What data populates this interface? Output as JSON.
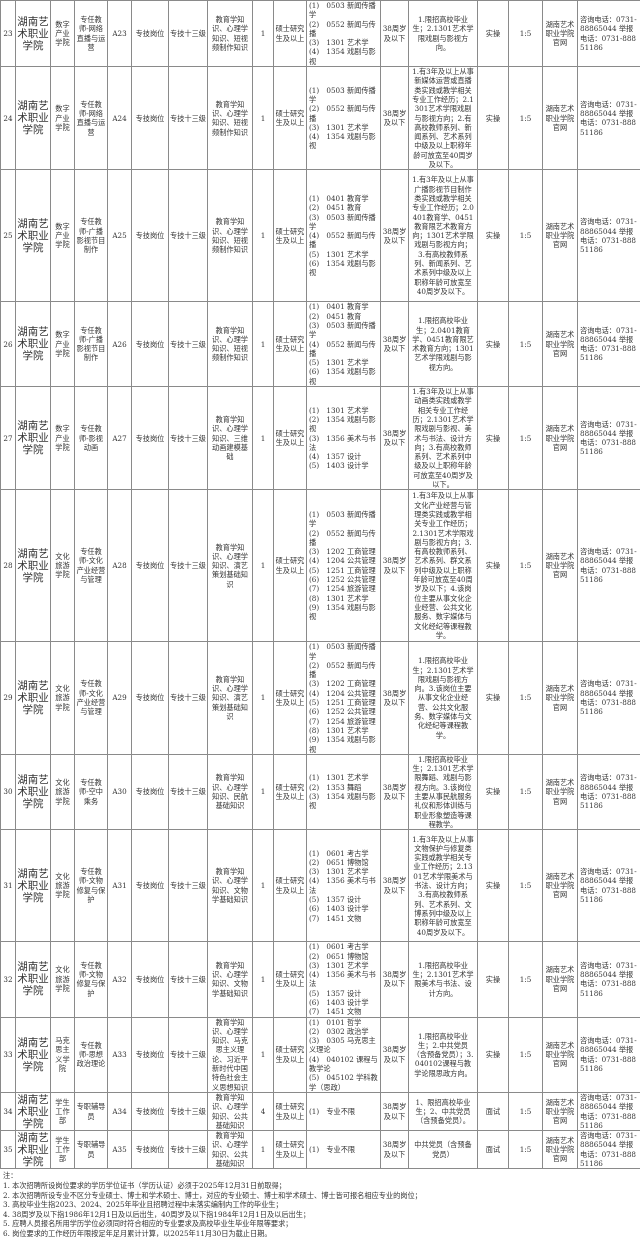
{
  "rows": [
    {
      "no": "23",
      "unit": "湖南艺术职业学院",
      "dept": "数字产业学院",
      "position": "专任教师-网络直播与运营",
      "code": "A23",
      "type": "专技岗位",
      "level": "专技十三级",
      "exam": "教育学知识、心理学知识、短视频制作知识",
      "count": "1",
      "edu": "硕士研究生及以上",
      "majors": [
        "(1)　0503 新闻传播学",
        "(2)　0552 新闻与传播",
        "(3)　1301 艺术学",
        "(4)　1354 戏剧与影视"
      ],
      "age": "38周岁及以下",
      "other": "1.限招高校毕业生；2.1301艺术学限戏剧与影视方向。",
      "method": "实操",
      "ratio": "1:5",
      "site": "湖南艺术职业学院官网",
      "contact": "咨询电话：0731-88865044 举报电话：0731-88851186"
    },
    {
      "no": "24",
      "unit": "湖南艺术职业学院",
      "dept": "数字产业学院",
      "position": "专任教师-网络直播与运营",
      "code": "A24",
      "type": "专技岗位",
      "level": "专技十三级",
      "exam": "教育学知识、心理学知识、短视频制作知识",
      "count": "1",
      "edu": "硕士研究生及以上",
      "majors": [
        "(1)　0503 新闻传播学",
        "(2)　0552 新闻与传播",
        "(3)　1301 艺术学",
        "(4)　1354 戏剧与影视"
      ],
      "age": "38周岁及以下",
      "other": "1.有3年及以上从事新媒体运营或直播类实践或教学相关专业工作经历；2.1301艺术学限戏剧与影视方向；2.有高校教师系列、新闻系列、艺术系列中级及以上职称年龄可放宽至40周岁及以下。",
      "method": "实操",
      "ratio": "1:5",
      "site": "湖南艺术职业学院官网",
      "contact": "咨询电话：0731-88865044 举报电话：0731-88851186"
    },
    {
      "no": "25",
      "unit": "湖南艺术职业学院",
      "dept": "数字产业学院",
      "position": "专任教师-广播影视节目制作",
      "code": "A25",
      "type": "专技岗位",
      "level": "专技十三级",
      "exam": "教育学知识、心理学知识、短视频制作知识",
      "count": "1",
      "edu": "硕士研究生及以上",
      "majors": [
        "(1)　0401 教育学",
        "(2)　0451 教育",
        "(3)　0503 新闻传播学",
        "(4)　0552 新闻与传播",
        "(5)　1301 艺术学",
        "(6)　1354 戏剧与影视"
      ],
      "age": "38周岁及以下",
      "other": "1.有3年及以上从事广播影视节目制作类实践或教学相关专业工作经历；2.0401教育学、0451教育限艺术教育方向；1301艺术学限戏剧与影视方向；3.有高校教师系列、新闻系列、艺术系列中级及以上职称年龄可放宽至40周岁及以下。",
      "method": "实操",
      "ratio": "1:5",
      "site": "湖南艺术职业学院官网",
      "contact": "咨询电话：0731-88865044 举报电话：0731-88851186"
    },
    {
      "no": "26",
      "unit": "湖南艺术职业学院",
      "dept": "数字产业学院",
      "position": "专任教师-广播影视节目制作",
      "code": "A26",
      "type": "专技岗位",
      "level": "专技十三级",
      "exam": "教育学知识、心理学知识、短视频制作知识",
      "count": "1",
      "edu": "硕士研究生及以上",
      "majors": [
        "(1)　0401 教育学",
        "(2)　0451 教育",
        "(3)　0503 新闻传播学",
        "(4)　0552 新闻与传播",
        "(5)　1301 艺术学",
        "(6)　1354 戏剧与影视"
      ],
      "age": "38周岁及以下",
      "other": "1.限招高校毕业生；2.0401教育学、0451教育限艺术教育方向；1301艺术学限戏剧与影视方向。",
      "method": "实操",
      "ratio": "1:5",
      "site": "湖南艺术职业学院官网",
      "contact": "咨询电话：0731-88865044 举报电话：0731-88851186"
    },
    {
      "no": "27",
      "unit": "湖南艺术职业学院",
      "dept": "数字产业学院",
      "position": "专任教师-影视动画",
      "code": "A27",
      "type": "专技岗位",
      "level": "专技十三级",
      "exam": "教育学知识、心理学知识、三维动画建模基础",
      "count": "1",
      "edu": "硕士研究生及以上",
      "majors": [
        "(1)　1301 艺术学",
        "(2)　1354 戏剧与影视",
        "(3)　1356 美术与书法",
        "(4)　1357 设计",
        "(5)　1403 设计学"
      ],
      "age": "38周岁及以下",
      "other": "1.有3年及以上从事动画类实践或教学相关专业工作经历；2.1301艺术学限戏剧与影视、美术与书法、设计方向；3.有高校教师系列、艺术系列中级及以上职称年龄可放宽至40周岁及以下。",
      "method": "实操",
      "ratio": "1:5",
      "site": "湖南艺术职业学院官网",
      "contact": "咨询电话：0731-88865044 举报电话：0731-88851186"
    },
    {
      "no": "28",
      "unit": "湖南艺术职业学院",
      "dept": "文化旅游学院",
      "position": "专任教师-文化产业经营与管理",
      "code": "A28",
      "type": "专技岗位",
      "level": "专技十三级",
      "exam": "教育学知识、心理学知识、演艺策划基础知识",
      "count": "1",
      "edu": "硕士研究生及以上",
      "majors": [
        "(1)　0503 新闻传播学",
        "(2)　0552 新闻与传播",
        "(3)　1202 工商管理",
        "(4)　1204 公共管理",
        "(5)　1251 工商管理",
        "(6)　1252 公共管理",
        "(7)　1254 旅游管理",
        "(8)　1301 艺术学",
        "(9)　1354 戏剧与影视"
      ],
      "age": "38周岁及以下",
      "other": "1.有3年及以上从事文化产业经营与管理类实践或教学相关专业工作经历；2.1301艺术学限戏剧与影视方向；3.有高校教师系列、艺术系列、群文系列中级及以上职称年龄可放宽至40周岁及以下；4.该岗位主要从事文化企业经营、公共文化服务、数字媒体与文化经纪等课程教学。",
      "method": "实操",
      "ratio": "1:5",
      "site": "湖南艺术职业学院官网",
      "contact": "咨询电话：0731-88865044 举报电话：0731-88851186"
    },
    {
      "no": "29",
      "unit": "湖南艺术职业学院",
      "dept": "文化旅游学院",
      "position": "专任教师-文化产业经营与管理",
      "code": "A29",
      "type": "专技岗位",
      "level": "专技十三级",
      "exam": "教育学知识、心理学知识、演艺策划基础知识",
      "count": "1",
      "edu": "硕士研究生及以上",
      "majors": [
        "(1)　0503 新闻传播学",
        "(2)　0552 新闻与传播",
        "(3)　1202 工商管理",
        "(4)　1204 公共管理",
        "(5)　1251 工商管理",
        "(6)　1252 公共管理",
        "(7)　1254 旅游管理",
        "(8)　1301 艺术学",
        "(9)　1354 戏剧与影视"
      ],
      "age": "38周岁及以下",
      "other": "1.限招高校毕业生；2.1301艺术学限戏剧与影视方向。3.该岗位主要从事文化企业经营、公共文化服务、数字媒体与文化经纪等课程教学。",
      "method": "实操",
      "ratio": "1:5",
      "site": "湖南艺术职业学院官网",
      "contact": "咨询电话：0731-88865044 举报电话：0731-88851186"
    },
    {
      "no": "30",
      "unit": "湖南艺术职业学院",
      "dept": "文化旅游学院",
      "position": "专任教师-空中乘务",
      "code": "A30",
      "type": "专技岗位",
      "level": "专技十三级",
      "exam": "教育学知识、心理学知识、民航基础知识",
      "count": "1",
      "edu": "硕士研究生及以上",
      "majors": [
        "(1)　1301 艺术学",
        "(2)　1353 舞蹈",
        "(3)　1354 戏剧与影视"
      ],
      "age": "38周岁及以下",
      "other": "1.限招高校毕业生；2.1301艺术学限舞蹈、戏剧与影视方向。3.该岗位主要从事民航服务礼仪和形体训练与职业形象塑造等课程教学。",
      "method": "实操",
      "ratio": "1:5",
      "site": "湖南艺术职业学院官网",
      "contact": "咨询电话：0731-88865044 举报电话：0731-88851186"
    },
    {
      "no": "31",
      "unit": "湖南艺术职业学院",
      "dept": "文化旅游学院",
      "position": "专任教师-文物修复与保护",
      "code": "A31",
      "type": "专技岗位",
      "level": "专技十三级",
      "exam": "教育学知识、心理学知识、文物学基础知识",
      "count": "1",
      "edu": "硕士研究生及以上",
      "majors": [
        "(1)　0601 考古学",
        "(2)　0651 博物馆",
        "(3)　1301 艺术学",
        "(4)　1356 美术与书法",
        "(5)　1357 设计",
        "(6)　1403 设计学",
        "(7)　1451 文物"
      ],
      "age": "38周岁及以下",
      "other": "1.有3年及以上从事文物保护与修复类实践或教学相关专业工作经历；2.1301艺术学限美术与书法、设计方向；3.有高校教师系列、艺术系列、文博系列中级及以上职称年龄可放宽至40周岁及以下。",
      "method": "实操",
      "ratio": "1:5",
      "site": "湖南艺术职业学院官网",
      "contact": "咨询电话：0731-88865044 举报电话：0731-88851186"
    },
    {
      "no": "32",
      "unit": "湖南艺术职业学院",
      "dept": "文化旅游学院",
      "position": "专任教师-文物修复与保护",
      "code": "A32",
      "type": "专技岗位",
      "level": "专技十三级",
      "exam": "教育学知识、心理学知识、文物学基础知识",
      "count": "1",
      "edu": "硕士研究生及以上",
      "majors": [
        "(1)　0601 考古学",
        "(2)　0651 博物馆",
        "(3)　1301 艺术学",
        "(4)　1356 美术与书法",
        "(5)　1357 设计",
        "(6)　1403 设计学",
        "(7)　1451 文物"
      ],
      "age": "38周岁及以下",
      "other": "1.限招高校毕业生；2.1301艺术学限美术与书法、设计方向。",
      "method": "实操",
      "ratio": "1:5",
      "site": "湖南艺术职业学院官网",
      "contact": "咨询电话：0731-88865044 举报电话：0731-88851186"
    },
    {
      "no": "33",
      "unit": "湖南艺术职业学院",
      "dept": "马克思主义学院",
      "position": "专任教师-思想政治理论",
      "code": "A33",
      "type": "专技岗位",
      "level": "专技十三级",
      "exam": "教育学知识、心理学知识、马克思主义理论、习近平新时代中国特色社会主义思想知识",
      "count": "1",
      "edu": "硕士研究生及以上",
      "majors": [
        "(1)　0101 哲学",
        "(2)　0302 政治学",
        "(3)　0305 马克思主义理论",
        "(4)　040102 课程与教学论",
        "(5)　045102 学科教学（思政）"
      ],
      "age": "38周岁及以下",
      "other": "1.限招高校毕业生；2.中共党员（含预备党员）；3.040102课程与教学论限思政方向。",
      "method": "实操",
      "ratio": "1:5",
      "site": "湖南艺术职业学院官网",
      "contact": "咨询电话：0731-88865044 举报电话：0731-88851186"
    },
    {
      "no": "34",
      "unit": "湖南艺术职业学院",
      "dept": "学生工作部",
      "position": "专职辅导员",
      "code": "A34",
      "type": "专技岗位",
      "level": "专技十三级",
      "exam": "教育学知识、心理学知识、公共基础知识",
      "count": "4",
      "edu": "硕士研究生及以上",
      "majors": [
        "(1)　专业不限"
      ],
      "age": "38周岁及以下",
      "other": "1、限招高校毕业生；2、中共党员（含预备党员）。",
      "method": "面试",
      "ratio": "1:5",
      "site": "湖南艺术职业学院官网",
      "contact": "咨询电话：0731-88865044 举报电话：0731-88851186"
    },
    {
      "no": "35",
      "unit": "湖南艺术职业学院",
      "dept": "学生工作部",
      "position": "专职辅导员",
      "code": "A35",
      "type": "专技岗位",
      "level": "专技十三级",
      "exam": "教育学知识、心理学知识、公共基础知识",
      "count": "1",
      "edu": "硕士研究生及以上",
      "majors": [
        "(1)　专业不限"
      ],
      "age": "38周岁及以下",
      "other": "中共党员（含预备党员）",
      "method": "面试",
      "ratio": "1:5",
      "site": "湖南艺术职业学院官网",
      "contact": "咨询电话：0731-88865044 举报电话：0731-88851186"
    }
  ],
  "notes": {
    "title": "注：",
    "items": [
      "1. 本次招聘所设岗位要求的学历学位证书（学历认证）必须于2025年12月31日前取得；",
      "2. 本次招聘所设专业不区分专业硕士、博士和学术硕士、博士，对应的专业硕士、博士和学术硕士、博士皆可报名相应专业的岗位；",
      "3. 高校毕业生指2023、2024、2025年毕业且招聘过程中未落实编制内工作的毕业生；",
      "4. 38周岁及以下指1986年12月1日及以后出生，40周岁及以下指1984年12月1日及以后出生；",
      "5. 应聘人员报名所用学历学位必须同时符合相应的专业要求及高校毕业生毕业年限等要求；",
      "6. 岗位要求的工作经历年限按足年足月累计计算，以2025年11月30日为截止日期。"
    ]
  }
}
